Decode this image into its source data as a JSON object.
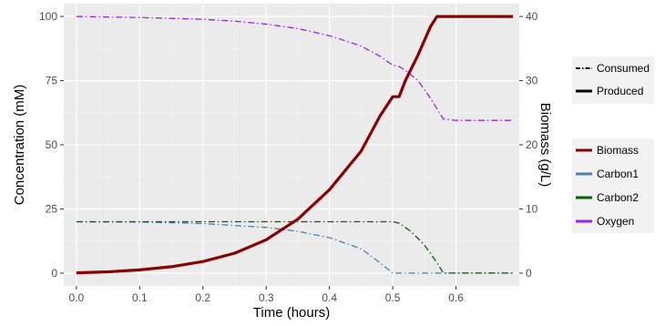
{
  "chart_data": {
    "type": "line",
    "xlabel": "Time (hours)",
    "ylabel": "Concentration (mM)",
    "y2label": "Biomass (g/L)",
    "xlim": [
      -0.02,
      0.7
    ],
    "ylim": [
      -5,
      105
    ],
    "y2lim": [
      -2,
      42
    ],
    "xticks": [
      0.0,
      0.1,
      0.2,
      0.3,
      0.4,
      0.5,
      0.6
    ],
    "xtick_labels": [
      "0.0",
      "0.1",
      "0.2",
      "0.3",
      "0.4",
      "0.5",
      "0.6"
    ],
    "yticks": [
      0,
      25,
      50,
      75,
      100
    ],
    "ytick_labels": [
      "0",
      "25",
      "50",
      "75",
      "100"
    ],
    "y2ticks": [
      0,
      10,
      20,
      30,
      40
    ],
    "y2tick_labels": [
      "0",
      "10",
      "20",
      "30",
      "40"
    ],
    "grid": true,
    "legend_position": "right",
    "linetype_legend": [
      {
        "label": "Consumed",
        "dash": "dashdot"
      },
      {
        "label": "Produced",
        "dash": "solid"
      }
    ],
    "series": [
      {
        "name": "Biomass",
        "color": "#8B0000",
        "axis": "right",
        "dash": "solid",
        "x": [
          0,
          0.05,
          0.1,
          0.15,
          0.2,
          0.25,
          0.3,
          0.35,
          0.4,
          0.45,
          0.48,
          0.5,
          0.51,
          0.52,
          0.54,
          0.56,
          0.57,
          0.58,
          0.6,
          0.65,
          0.69
        ],
        "y": [
          0.05,
          0.2,
          0.5,
          1.0,
          1.8,
          3.1,
          5.2,
          8.4,
          13.0,
          19.0,
          24.5,
          27.5,
          27.5,
          30.0,
          34.0,
          38.5,
          40.0,
          40.0,
          40.0,
          40.0,
          40.0
        ]
      },
      {
        "name": "Carbon1",
        "color": "#4682B4",
        "axis": "left",
        "dash": "dashdot",
        "x": [
          0,
          0.1,
          0.2,
          0.3,
          0.35,
          0.4,
          0.45,
          0.48,
          0.5,
          0.52,
          0.6,
          0.69
        ],
        "y": [
          20,
          19.9,
          19.3,
          17.8,
          16.3,
          13.8,
          9.5,
          4.0,
          0,
          0,
          0,
          0
        ]
      },
      {
        "name": "Carbon2",
        "color": "#006400",
        "axis": "left",
        "dash": "dashdot",
        "x": [
          0,
          0.1,
          0.2,
          0.3,
          0.4,
          0.5,
          0.51,
          0.53,
          0.55,
          0.57,
          0.58,
          0.6,
          0.69
        ],
        "y": [
          20,
          20,
          20,
          20,
          20,
          20,
          19.5,
          16.0,
          11.0,
          4.0,
          0,
          0,
          0
        ]
      },
      {
        "name": "Oxygen",
        "color": "#A020F0",
        "axis": "left",
        "dash": "dashdot",
        "x": [
          0,
          0.1,
          0.2,
          0.25,
          0.3,
          0.35,
          0.4,
          0.45,
          0.48,
          0.5,
          0.51,
          0.52,
          0.54,
          0.56,
          0.58,
          0.6,
          0.65,
          0.69
        ],
        "y": [
          100,
          99.6,
          98.9,
          98.2,
          97.0,
          95.3,
          92.5,
          88.5,
          84.5,
          81.0,
          80.5,
          79.0,
          75.0,
          68.0,
          60.0,
          59.5,
          59.5,
          59.5
        ]
      }
    ]
  }
}
